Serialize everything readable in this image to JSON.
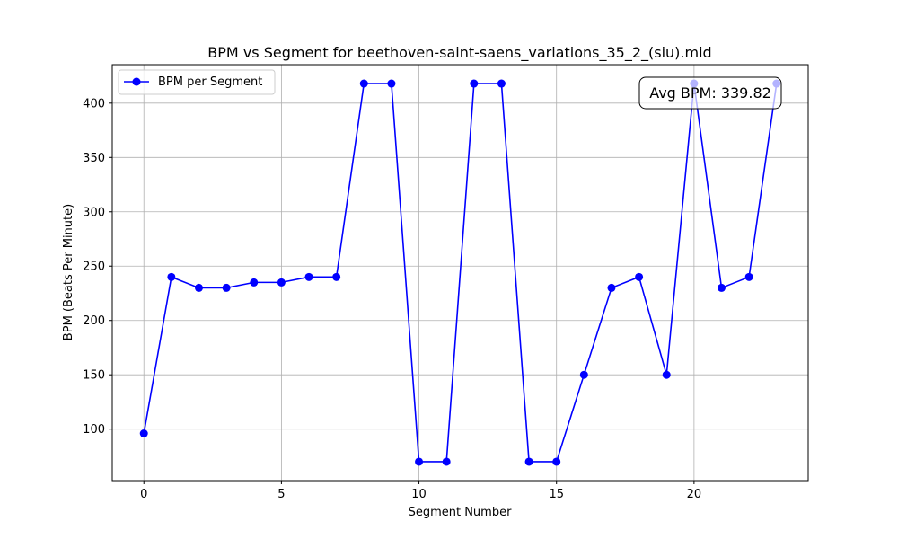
{
  "chart_data": {
    "type": "line",
    "title": "BPM vs Segment for beethoven-saint-saens_variations_35_2_(siu).mid",
    "xlabel": "Segment Number",
    "ylabel": "BPM (Beats Per Minute)",
    "x": [
      0,
      1,
      2,
      3,
      4,
      5,
      6,
      7,
      8,
      9,
      10,
      11,
      12,
      13,
      14,
      15,
      16,
      17,
      18,
      19,
      20,
      21,
      22,
      23
    ],
    "series": [
      {
        "name": "BPM per Segment",
        "color": "#0000ff",
        "values": [
          96,
          240,
          230,
          230,
          235,
          235,
          240,
          240,
          418,
          418,
          70,
          70,
          418,
          418,
          70,
          70,
          150,
          230,
          240,
          150,
          418,
          230,
          240,
          418
        ]
      }
    ],
    "xlim": [
      -1.15,
      24.15
    ],
    "ylim": [
      52.6,
      435.4
    ],
    "xticks": [
      0,
      5,
      10,
      15,
      20
    ],
    "yticks": [
      100,
      150,
      200,
      250,
      300,
      350,
      400
    ],
    "grid": true,
    "legend": "top-left",
    "annotation": "Avg BPM: 339.82"
  }
}
